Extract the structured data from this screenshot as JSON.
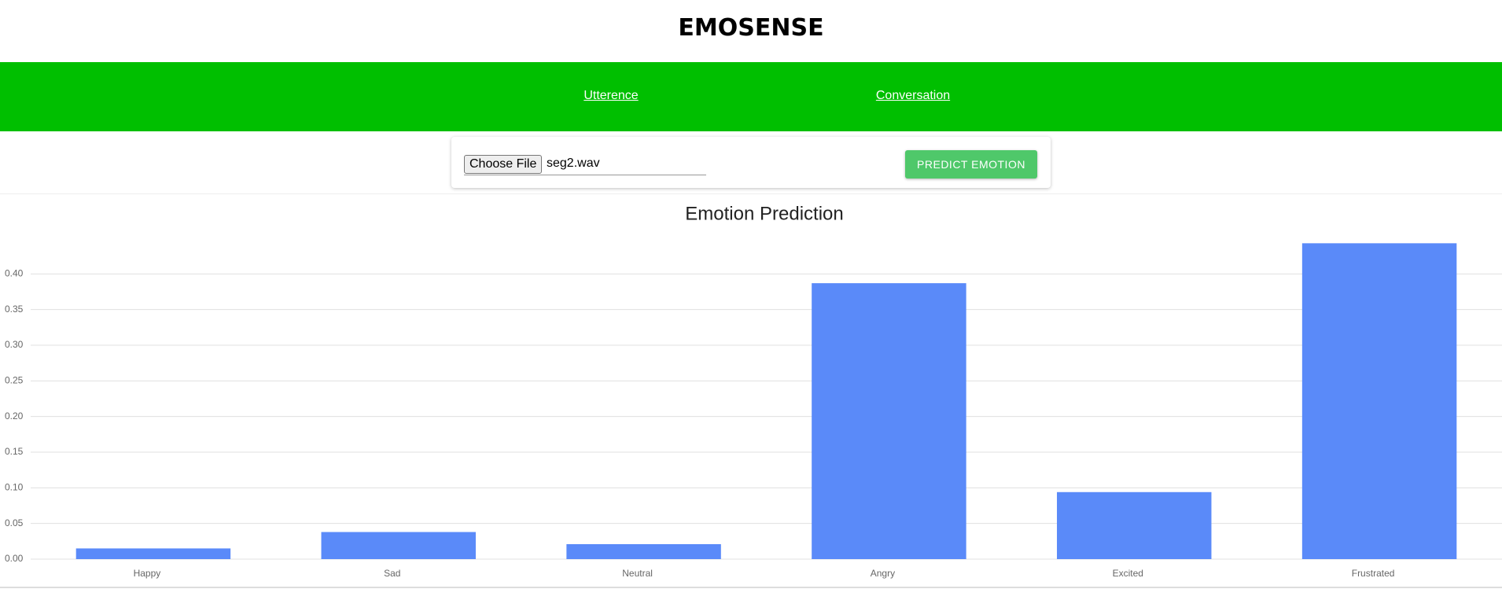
{
  "header": {
    "title": "EMOSENSE"
  },
  "nav": {
    "links": [
      "Utterence",
      "Conversation"
    ]
  },
  "form": {
    "file_button": "Choose File",
    "file_name": "seg2.wav",
    "submit": "PREDICT EMOTION"
  },
  "chart_data": {
    "type": "bar",
    "title": "Emotion Prediction",
    "categories": [
      "Happy",
      "Sad",
      "Neutral",
      "Angry",
      "Excited",
      "Frustrated"
    ],
    "values": [
      0.015,
      0.038,
      0.021,
      0.387,
      0.094,
      0.443
    ],
    "color": "#5a8af9",
    "ylim": [
      0,
      0.45
    ],
    "yticks": [
      {
        "value": 0,
        "label": "0.00"
      },
      {
        "value": 0.05,
        "label": "0.05"
      },
      {
        "value": 0.1,
        "label": "0.10"
      },
      {
        "value": 0.15,
        "label": "0.15"
      },
      {
        "value": 0.2,
        "label": "0.20"
      },
      {
        "value": 0.25,
        "label": "0.25"
      },
      {
        "value": 0.3,
        "label": "0.30"
      },
      {
        "value": 0.35,
        "label": "0.35"
      },
      {
        "value": 0.4,
        "label": "0.40"
      }
    ],
    "grid": true
  }
}
